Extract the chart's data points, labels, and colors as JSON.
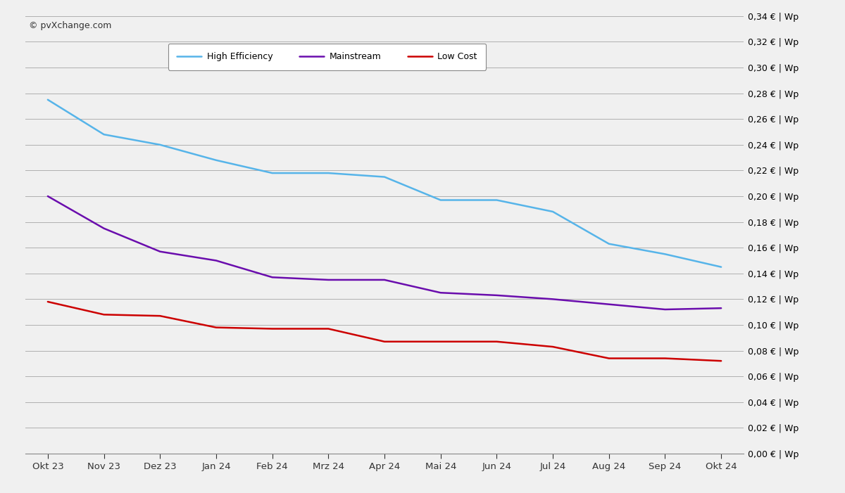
{
  "x_labels": [
    "Okt 23",
    "Nov 23",
    "Dez 23",
    "Jan 24",
    "Feb 24",
    "Mrz 24",
    "Apr 24",
    "Mai 24",
    "Jun 24",
    "Jul 24",
    "Aug 24",
    "Sep 24",
    "Okt 24"
  ],
  "high_efficiency": [
    0.275,
    0.248,
    0.24,
    0.228,
    0.218,
    0.218,
    0.215,
    0.197,
    0.197,
    0.188,
    0.163,
    0.155,
    0.145
  ],
  "mainstream": [
    0.2,
    0.175,
    0.157,
    0.15,
    0.137,
    0.135,
    0.135,
    0.125,
    0.123,
    0.12,
    0.116,
    0.112,
    0.113
  ],
  "low_cost": [
    0.118,
    0.108,
    0.107,
    0.098,
    0.097,
    0.097,
    0.087,
    0.087,
    0.087,
    0.083,
    0.074,
    0.074,
    0.072
  ],
  "high_efficiency_color": "#56b4e9",
  "mainstream_color": "#6a0dad",
  "low_cost_color": "#cc0000",
  "background_color": "#f0f0f0",
  "plot_bg_color": "#f0f0f0",
  "grid_color": "#b0b0b0",
  "ylim_min": 0.0,
  "ylim_max": 0.34,
  "ytick_step": 0.02,
  "watermark": "© pvXchange.com",
  "legend_labels": [
    "High Efficiency",
    "Mainstream",
    "Low Cost"
  ]
}
